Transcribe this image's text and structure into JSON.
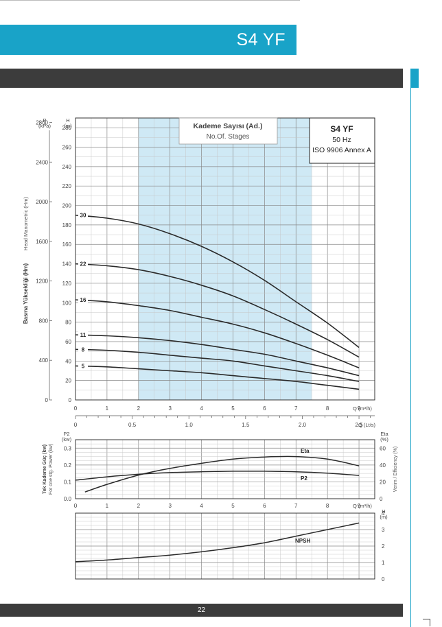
{
  "page": {
    "title": "S4 YF",
    "page_number": "22"
  },
  "legend_box": {
    "line1": "S4 YF",
    "line2": "50 Hz",
    "line3": "ISO 9906 Annex A"
  },
  "stages_box": {
    "title": "Kademe Sayısı (Ad.)",
    "subtitle": "No.Of. Stages"
  },
  "colors": {
    "brand": "#19a3c8",
    "dark_bar": "#3c3c3c",
    "highlight": "#cfe9f5",
    "curve": "#2a2a2a"
  },
  "chart_data": [
    {
      "type": "line",
      "name": "head-curves",
      "x_label": "Q (m³/h)",
      "x2_label": "Q (Lt/s)",
      "y_label_h": "H (m)",
      "y_label_p": "P (kPa)",
      "y_axis_title_tr": "Basma Yüksekliği (Hm)",
      "y_axis_title_en": "Head Manometric (Hm)",
      "xlim": [
        0,
        9.5
      ],
      "ylim": [
        0,
        290
      ],
      "x_ticks": [
        "0",
        "1",
        "2",
        "3",
        "4",
        "5",
        "6",
        "7",
        "8",
        "9"
      ],
      "x2_ticks": [
        {
          "v": 0,
          "l": "0"
        },
        {
          "v": 0.5,
          "l": "0.5"
        },
        {
          "v": 1.0,
          "l": "1.0"
        },
        {
          "v": 1.5,
          "l": "1.5"
        },
        {
          "v": 2.0,
          "l": "2.0"
        },
        {
          "v": 2.5,
          "l": "2.5"
        }
      ],
      "h_ticks": [
        "0",
        "20",
        "40",
        "60",
        "80",
        "100",
        "120",
        "140",
        "160",
        "180",
        "200",
        "220",
        "240",
        "260",
        "280"
      ],
      "p_ticks": [
        "0",
        "400",
        "800",
        "1200",
        "1600",
        "2000",
        "2400",
        "2800"
      ],
      "highlight_range": [
        2,
        7.5
      ],
      "series": [
        {
          "name": "30",
          "x": [
            0,
            1,
            2,
            3,
            4,
            5,
            6,
            7,
            8,
            9
          ],
          "y": [
            190,
            187,
            181,
            171,
            158,
            142,
            123,
            101,
            79,
            54
          ]
        },
        {
          "name": "22",
          "x": [
            0,
            1,
            2,
            3,
            4,
            5,
            6,
            7,
            8,
            9
          ],
          "y": [
            140,
            138,
            134,
            127,
            118,
            107,
            93,
            78,
            62,
            44
          ]
        },
        {
          "name": "16",
          "x": [
            0,
            1,
            2,
            3,
            4,
            5,
            6,
            7,
            8,
            9
          ],
          "y": [
            103,
            101,
            97,
            92,
            85,
            78,
            69,
            58,
            46,
            33
          ]
        },
        {
          "name": "11",
          "x": [
            0,
            1,
            2,
            3,
            4,
            5,
            6,
            7,
            8,
            9
          ],
          "y": [
            67,
            66,
            64,
            61,
            57,
            52,
            47,
            40,
            33,
            25
          ]
        },
        {
          "name": "8",
          "x": [
            0,
            1,
            2,
            3,
            4,
            5,
            6,
            7,
            8,
            9
          ],
          "y": [
            52,
            51,
            49,
            46,
            43,
            40,
            35,
            30,
            25,
            19
          ]
        },
        {
          "name": "5",
          "x": [
            0,
            1,
            2,
            3,
            4,
            5,
            6,
            7,
            8,
            9
          ],
          "y": [
            35,
            34,
            32,
            30,
            28,
            25,
            22,
            19,
            15,
            11
          ]
        }
      ]
    },
    {
      "type": "line",
      "name": "power-efficiency",
      "x_label": "Q (m³/h)",
      "y_label_left": "P2 (kw)",
      "y_label_right": "Eta (%)",
      "y_axis_title_tr": "Tek Kademe Güç (kw)",
      "y_axis_title_en": "For one stg. Power (kw)",
      "y_axis_title_right": "Verim / Efficiency (%)",
      "xlim": [
        0,
        9.5
      ],
      "ylim_left": [
        0,
        0.35
      ],
      "ylim_right": [
        0,
        70
      ],
      "x_ticks": [
        "0",
        "1",
        "2",
        "3",
        "4",
        "5",
        "6",
        "7",
        "8",
        "9"
      ],
      "left_ticks": [
        {
          "v": 0,
          "l": "0.0"
        },
        {
          "v": 0.1,
          "l": "0.1"
        },
        {
          "v": 0.2,
          "l": "0.2"
        },
        {
          "v": 0.3,
          "l": "0.3"
        }
      ],
      "right_ticks": [
        {
          "v": 0,
          "l": "0"
        },
        {
          "v": 20,
          "l": "20"
        },
        {
          "v": 40,
          "l": "40"
        },
        {
          "v": 60,
          "l": "60"
        }
      ],
      "series": [
        {
          "name": "Eta",
          "axis": "right",
          "x": [
            0.3,
            1,
            2,
            3,
            4,
            5,
            6,
            7,
            8,
            9
          ],
          "y": [
            8,
            17,
            28,
            36,
            42,
            47,
            49.5,
            50,
            47,
            39
          ]
        },
        {
          "name": "P2",
          "axis": "left",
          "x": [
            0,
            1,
            2,
            3,
            4,
            5,
            6,
            7,
            8,
            9
          ],
          "y": [
            0.11,
            0.13,
            0.145,
            0.155,
            0.16,
            0.163,
            0.163,
            0.16,
            0.152,
            0.138
          ]
        }
      ]
    },
    {
      "type": "line",
      "name": "npsh",
      "y_label": "H (m)",
      "xlim": [
        0,
        9.5
      ],
      "ylim": [
        0,
        4
      ],
      "y_ticks": [
        "0",
        "1",
        "2",
        "3",
        "4"
      ],
      "series": [
        {
          "name": "NPSH",
          "x": [
            0,
            1,
            2,
            3,
            4,
            5,
            6,
            7,
            8,
            9
          ],
          "y": [
            1.05,
            1.15,
            1.3,
            1.45,
            1.65,
            1.9,
            2.2,
            2.6,
            3.0,
            3.4
          ]
        }
      ]
    }
  ]
}
